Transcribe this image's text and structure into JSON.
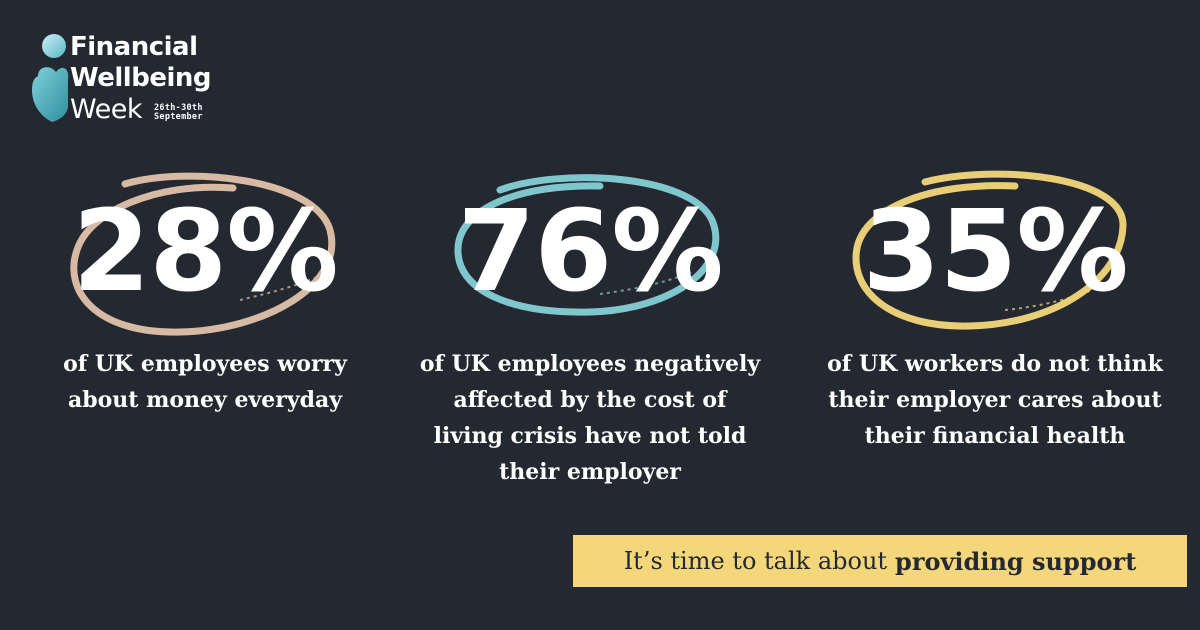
{
  "logo": {
    "line1": "Financial",
    "line2": "Wellbeing",
    "line3": "Week",
    "date_line1": "26th-30th",
    "date_line2": "September",
    "colors": {
      "primary": "#56b7c7",
      "dark": "#2f8f9e"
    }
  },
  "stats": [
    {
      "value": "28%",
      "ring_color": "#e2c2ab",
      "lines": [
        "of UK employees worry",
        "about money everyday"
      ]
    },
    {
      "value": "76%",
      "ring_color": "#86cfd6",
      "lines": [
        "of UK employees negatively",
        "affected by the cost of",
        "living crisis have not told",
        "their employer"
      ]
    },
    {
      "value": "35%",
      "ring_color": "#f3d77a",
      "lines": [
        "of UK workers do not think",
        "their employer cares about",
        "their financial health"
      ]
    }
  ],
  "banner": {
    "text": "It’s time to talk about",
    "emphasis": "providing support",
    "background": "#f3d77a"
  },
  "background": "#242830"
}
